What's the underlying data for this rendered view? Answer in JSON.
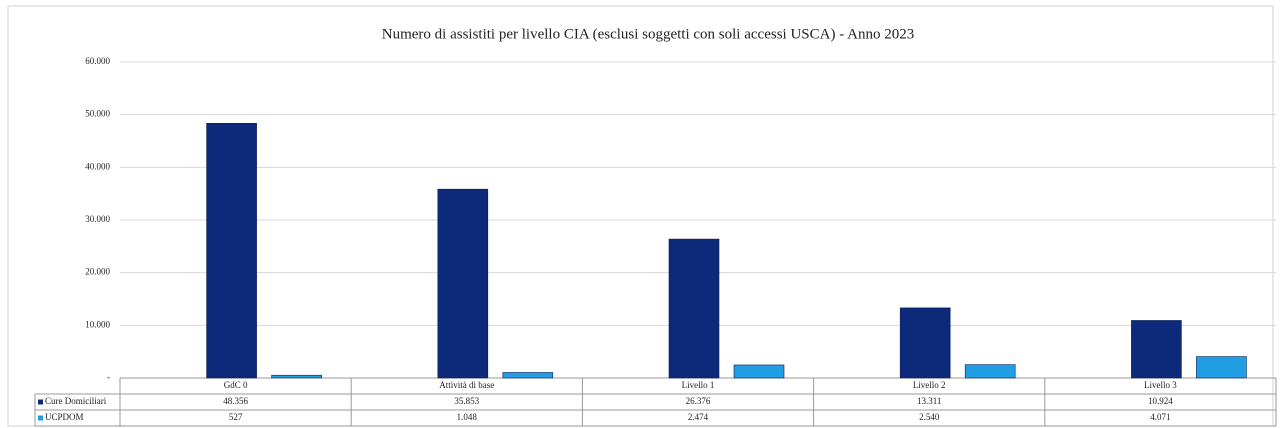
{
  "chart_data": {
    "type": "bar",
    "title": "Numero di assistiti per livello  CIA (esclusi soggetti con soli accessi USCA) - Anno 2023",
    "categories": [
      "GdC 0",
      "Attività di base",
      "Livello 1",
      "Livello 2",
      "Livello 3"
    ],
    "series": [
      {
        "name": "Cure Domiciliari",
        "color": "#0d2a7a",
        "values": [
          48356,
          35853,
          26376,
          13311,
          10924
        ],
        "value_labels": [
          "48.356",
          "35.853",
          "26.376",
          "13.311",
          "10.924"
        ]
      },
      {
        "name": "UCPDOM",
        "color": "#1f9ee3",
        "values": [
          527,
          1048,
          2474,
          2540,
          4071
        ],
        "value_labels": [
          "527",
          "1.048",
          "2.474",
          "2.540",
          "4.071"
        ]
      }
    ],
    "ylim": [
      0,
      60000
    ],
    "yticks": [
      {
        "value": 0,
        "label": "-"
      },
      {
        "value": 10000,
        "label": "10.000"
      },
      {
        "value": 20000,
        "label": "20.000"
      },
      {
        "value": 30000,
        "label": "30.000"
      },
      {
        "value": 40000,
        "label": "40.000"
      },
      {
        "value": 50000,
        "label": "50.000"
      },
      {
        "value": 60000,
        "label": "60.000"
      }
    ],
    "grid": true
  }
}
